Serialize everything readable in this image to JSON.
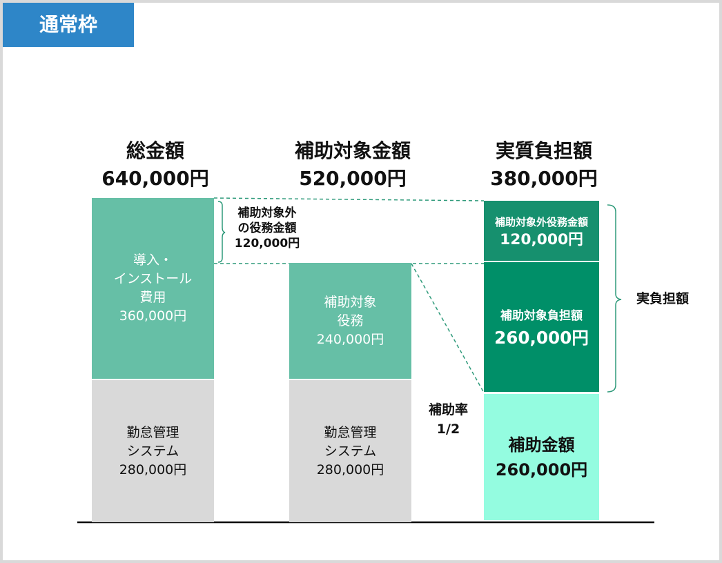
{
  "badge": "通常枠",
  "columns": [
    {
      "title": "総金額",
      "amount": "640,000円",
      "blocks": [
        {
          "lines": [
            "導入・",
            "インストール",
            "費用",
            "360,000円"
          ]
        },
        {
          "lines": [
            "勤怠管理",
            "システム",
            "280,000円"
          ]
        }
      ]
    },
    {
      "title": "補助対象金額",
      "amount": "520,000円",
      "blocks": [
        {
          "lines": [
            "補助対象",
            "役務",
            "240,000円"
          ]
        },
        {
          "lines": [
            "勤怠管理",
            "システム",
            "280,000円"
          ]
        }
      ]
    },
    {
      "title": "実質負担額",
      "amount": "380,000円",
      "blocks": [
        {
          "lines": [
            "補助対象外役務金額",
            "120,000円"
          ]
        },
        {
          "lines": [
            "補助対象負担額",
            "260,000円"
          ]
        },
        {
          "lines": [
            "補助金額",
            "260,000円"
          ]
        }
      ]
    }
  ],
  "annotations": {
    "excluded": [
      "補助対象外",
      "の役務金額",
      "120,000円"
    ],
    "rate": [
      "補助率",
      "1/2"
    ],
    "burden": "実負担額"
  }
}
